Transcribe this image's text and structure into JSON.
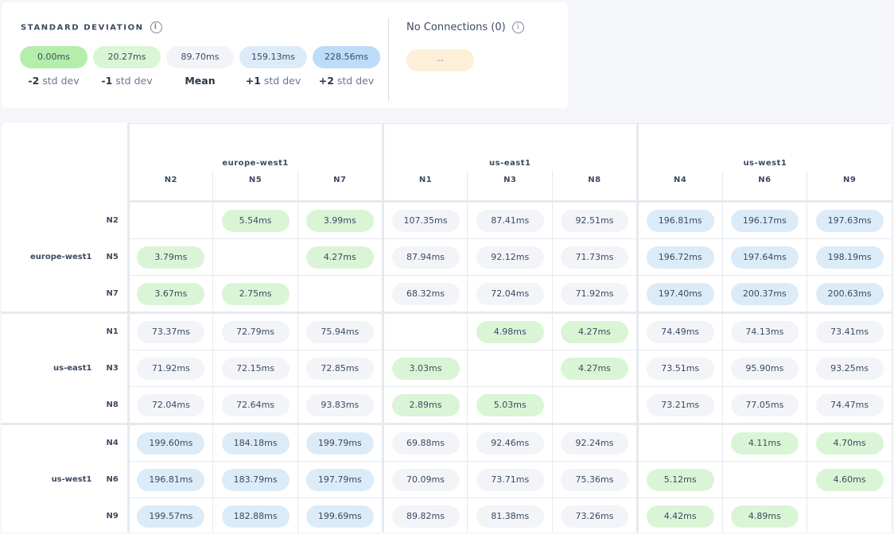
{
  "legend": {
    "title": "STANDARD DEVIATION",
    "info_icon": "i",
    "items": [
      {
        "value": "0.00ms",
        "prefix": "-2",
        "suffix": " std dev",
        "level": "g2"
      },
      {
        "value": "20.27ms",
        "prefix": "-1",
        "suffix": " std dev",
        "level": "g1"
      },
      {
        "value": "89.70ms",
        "prefix": "Mean",
        "suffix": "",
        "level": "m"
      },
      {
        "value": "159.13ms",
        "prefix": "+1",
        "suffix": " std dev",
        "level": "b1"
      },
      {
        "value": "228.56ms",
        "prefix": "+2",
        "suffix": " std dev",
        "level": "b2"
      }
    ],
    "no_connections": {
      "title": "No Connections (0)",
      "value": "--"
    },
    "colors": {
      "g2": "#b3eeaa",
      "g1": "#daf5d6",
      "m": "#f2f4f8",
      "b1": "#dcebf8",
      "b2": "#bcdcf9",
      "none": "#fdefd8"
    }
  },
  "regions": [
    {
      "name": "europe-west1",
      "nodes": [
        "N2",
        "N5",
        "N7"
      ]
    },
    {
      "name": "us-east1",
      "nodes": [
        "N1",
        "N3",
        "N8"
      ]
    },
    {
      "name": "us-west1",
      "nodes": [
        "N4",
        "N6",
        "N9"
      ]
    }
  ],
  "matrix": [
    [
      "",
      "5.54ms",
      "3.99ms",
      "107.35ms",
      "87.41ms",
      "92.51ms",
      "196.81ms",
      "196.17ms",
      "197.63ms"
    ],
    [
      "3.79ms",
      "",
      "4.27ms",
      "87.94ms",
      "92.12ms",
      "71.73ms",
      "196.72ms",
      "197.64ms",
      "198.19ms"
    ],
    [
      "3.67ms",
      "2.75ms",
      "",
      "68.32ms",
      "72.04ms",
      "71.92ms",
      "197.40ms",
      "200.37ms",
      "200.63ms"
    ],
    [
      "73.37ms",
      "72.79ms",
      "75.94ms",
      "",
      "4.98ms",
      "4.27ms",
      "74.49ms",
      "74.13ms",
      "73.41ms"
    ],
    [
      "71.92ms",
      "72.15ms",
      "72.85ms",
      "3.03ms",
      "",
      "4.27ms",
      "73.51ms",
      "95.90ms",
      "93.25ms"
    ],
    [
      "72.04ms",
      "72.64ms",
      "93.83ms",
      "2.89ms",
      "5.03ms",
      "",
      "73.21ms",
      "77.05ms",
      "74.47ms"
    ],
    [
      "199.60ms",
      "184.18ms",
      "199.79ms",
      "69.88ms",
      "92.46ms",
      "92.24ms",
      "",
      "4.11ms",
      "4.70ms"
    ],
    [
      "196.81ms",
      "183.79ms",
      "197.79ms",
      "70.09ms",
      "73.71ms",
      "75.36ms",
      "5.12ms",
      "",
      "4.60ms"
    ],
    [
      "199.57ms",
      "182.88ms",
      "199.69ms",
      "89.82ms",
      "81.38ms",
      "73.26ms",
      "4.42ms",
      "4.89ms",
      ""
    ]
  ]
}
